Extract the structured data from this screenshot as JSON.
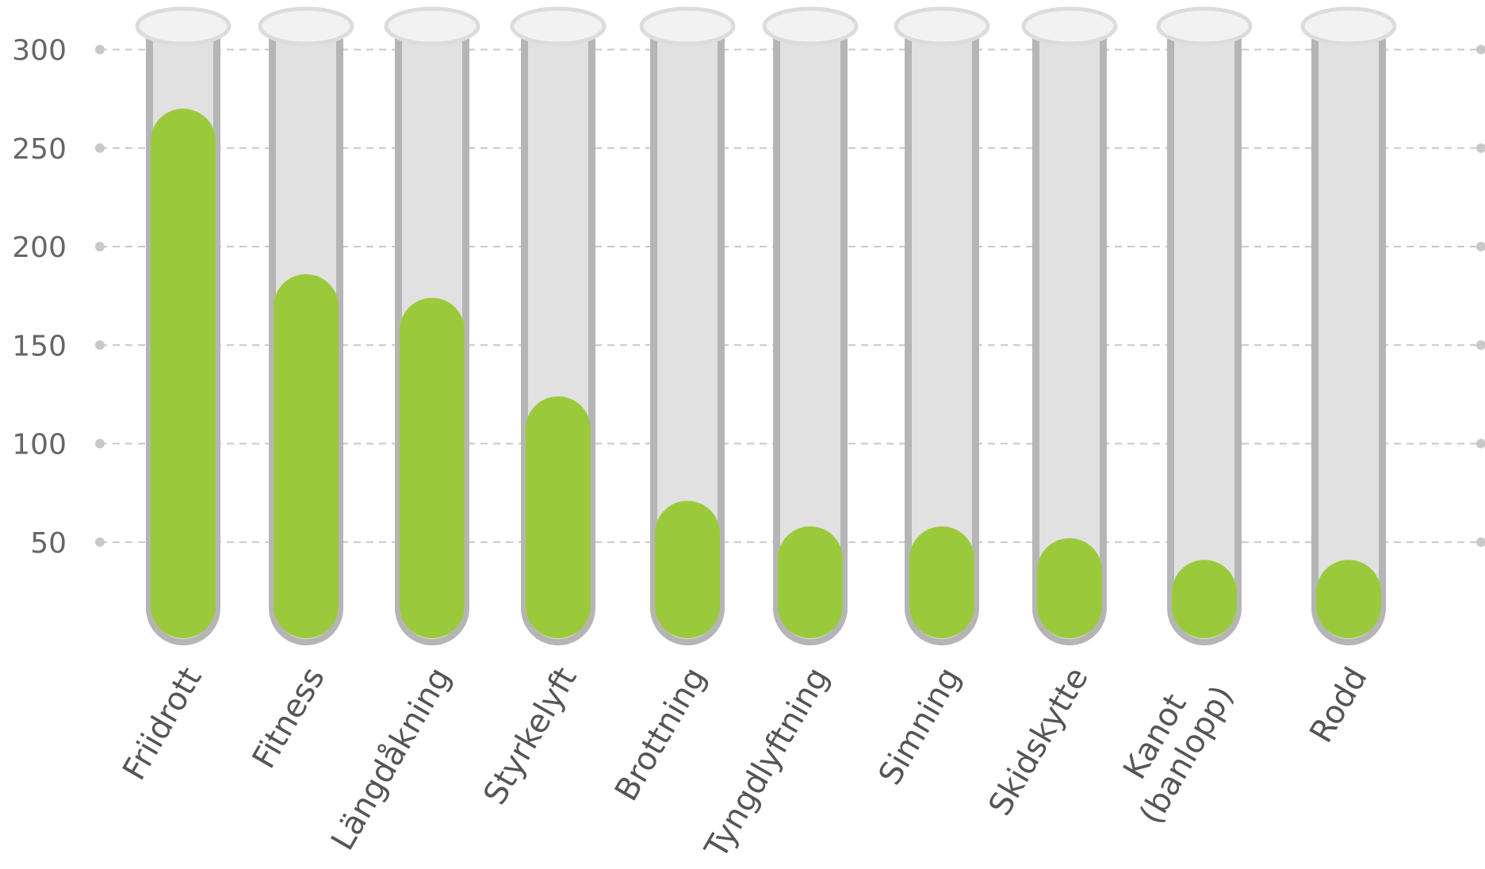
{
  "chart_data": {
    "type": "bar",
    "style": "test tubes",
    "title": "",
    "xlabel": "",
    "ylabel": "",
    "categories": [
      "Friidrott",
      "Fitness",
      "Längdåkning",
      "Styrkelyft",
      "Brottning",
      "Tyngdlyftning",
      "Simning",
      "Skidskytte",
      "Kanot (banlopp)",
      "Rodd"
    ],
    "category_label_lines": [
      [
        "Friidrott"
      ],
      [
        "Fitness"
      ],
      [
        "Längdåkning"
      ],
      [
        "Styrkelyft"
      ],
      [
        "Brottning"
      ],
      [
        "Tyngdlyftning"
      ],
      [
        "Simning"
      ],
      [
        "Skidskytte"
      ],
      [
        "Kanot",
        "(banlopp)"
      ],
      [
        "Rodd"
      ]
    ],
    "values": [
      270,
      186,
      174,
      124,
      71,
      58,
      58,
      52,
      41,
      41
    ],
    "yticks": [
      50,
      100,
      150,
      200,
      250,
      300
    ],
    "ylim": [
      0,
      320
    ],
    "grid": true,
    "colors": {
      "fill": "#9aca3c",
      "tube": "#e1e1e1",
      "tube_border": "#b5b5b5",
      "tube_top": "#f2f2f2",
      "tube_top_border": "#dcdcdc"
    }
  }
}
